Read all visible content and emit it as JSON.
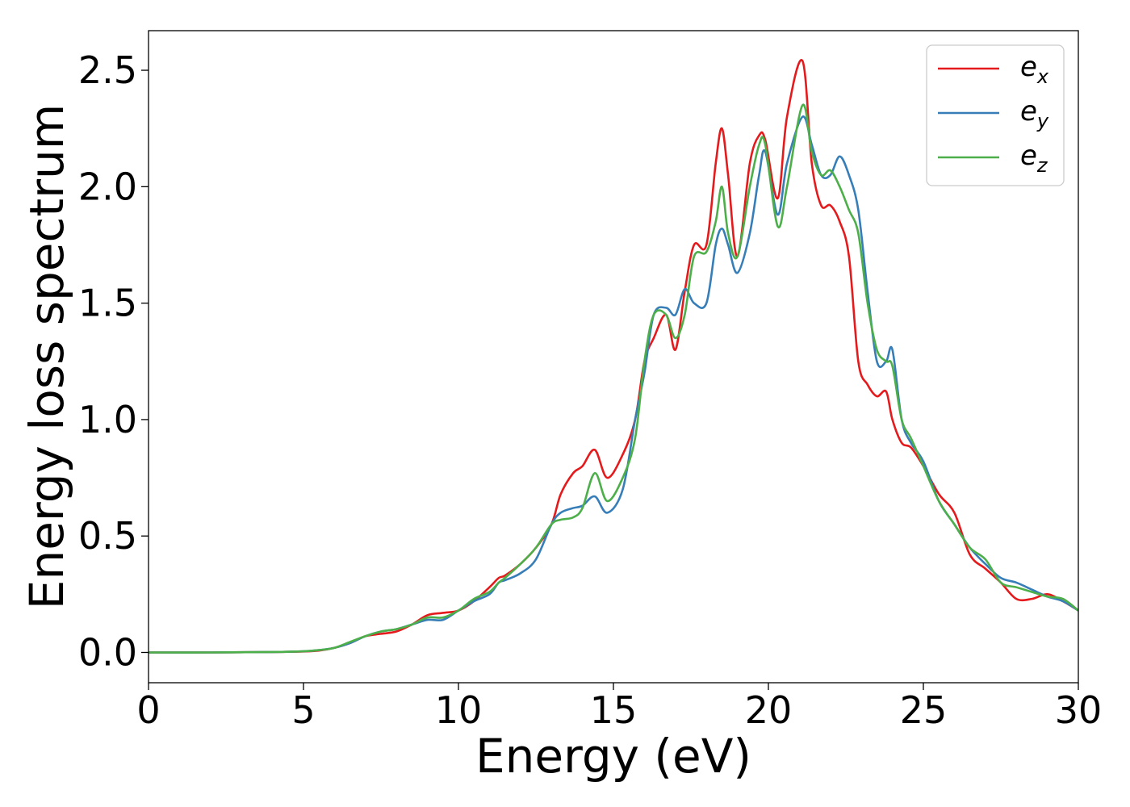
{
  "chart_data": {
    "type": "line",
    "xlabel": "Energy (eV)",
    "ylabel": "Energy loss spectrum",
    "xlim": [
      0,
      30
    ],
    "ylim": [
      -0.13,
      2.67
    ],
    "xticks": [
      "0",
      "5",
      "10",
      "15",
      "20",
      "25",
      "30"
    ],
    "yticks": [
      "0.0",
      "0.5",
      "1.0",
      "1.5",
      "2.0",
      "2.5"
    ],
    "grid": false,
    "legend_position": "top-right",
    "series": [
      {
        "name": "e_x",
        "legend_base": "e",
        "legend_sub": "x",
        "color": "#e41a1c",
        "x": [
          0,
          2,
          4,
          5,
          5.5,
          6,
          6.5,
          7,
          7.5,
          8,
          8.5,
          9,
          9.5,
          10,
          10.5,
          11,
          11.3,
          11.5,
          12,
          12.5,
          13,
          13.3,
          13.7,
          14,
          14.4,
          14.8,
          15.3,
          15.7,
          16,
          16.3,
          16.7,
          17,
          17.3,
          17.6,
          18,
          18.3,
          18.5,
          18.7,
          19,
          19.4,
          19.7,
          19.9,
          20.3,
          20.6,
          21.1,
          21.4,
          21.7,
          22,
          22.3,
          22.6,
          22.9,
          23.2,
          23.5,
          23.8,
          24,
          24.3,
          24.6,
          25,
          25.5,
          26,
          26.5,
          27,
          27.5,
          28,
          28.5,
          29,
          29.5,
          30
        ],
        "y": [
          0,
          0,
          0.002,
          0.004,
          0.008,
          0.02,
          0.04,
          0.07,
          0.08,
          0.09,
          0.12,
          0.16,
          0.17,
          0.18,
          0.22,
          0.28,
          0.32,
          0.33,
          0.38,
          0.45,
          0.55,
          0.68,
          0.77,
          0.8,
          0.87,
          0.75,
          0.85,
          1.0,
          1.25,
          1.35,
          1.45,
          1.3,
          1.55,
          1.75,
          1.75,
          2.1,
          2.25,
          2.05,
          1.7,
          2.1,
          2.22,
          2.2,
          1.95,
          2.3,
          2.54,
          2.1,
          1.92,
          1.92,
          1.85,
          1.7,
          1.25,
          1.15,
          1.1,
          1.12,
          1.0,
          0.9,
          0.88,
          0.8,
          0.68,
          0.6,
          0.42,
          0.36,
          0.3,
          0.23,
          0.23,
          0.25,
          0.22,
          0.18
        ]
      },
      {
        "name": "e_y",
        "legend_base": "e",
        "legend_sub": "y",
        "color": "#377eb8",
        "x": [
          0,
          2,
          4,
          5,
          5.5,
          6,
          6.5,
          7,
          7.5,
          8,
          8.5,
          9,
          9.5,
          10,
          10.5,
          11,
          11.3,
          11.5,
          12,
          12.5,
          13,
          13.3,
          13.7,
          14,
          14.4,
          14.8,
          15.3,
          15.7,
          16,
          16.3,
          16.7,
          17,
          17.3,
          17.6,
          18,
          18.3,
          18.5,
          18.7,
          19,
          19.4,
          19.7,
          19.9,
          20.3,
          20.6,
          21.1,
          21.4,
          21.7,
          22,
          22.3,
          22.6,
          22.9,
          23.2,
          23.5,
          23.8,
          24,
          24.3,
          24.6,
          25,
          25.5,
          26,
          26.5,
          27,
          27.5,
          28,
          28.5,
          29,
          29.5,
          30
        ],
        "y": [
          0,
          0,
          0.002,
          0.005,
          0.01,
          0.02,
          0.04,
          0.07,
          0.09,
          0.1,
          0.12,
          0.14,
          0.14,
          0.18,
          0.22,
          0.25,
          0.3,
          0.31,
          0.34,
          0.4,
          0.55,
          0.6,
          0.62,
          0.63,
          0.67,
          0.6,
          0.7,
          1.0,
          1.2,
          1.45,
          1.48,
          1.45,
          1.56,
          1.5,
          1.5,
          1.75,
          1.82,
          1.75,
          1.63,
          1.8,
          2.05,
          2.15,
          1.88,
          2.1,
          2.3,
          2.18,
          2.05,
          2.05,
          2.13,
          2.05,
          1.9,
          1.55,
          1.25,
          1.25,
          1.3,
          1.0,
          0.9,
          0.82,
          0.65,
          0.55,
          0.45,
          0.38,
          0.32,
          0.3,
          0.27,
          0.24,
          0.22,
          0.18
        ]
      },
      {
        "name": "e_z",
        "legend_base": "e",
        "legend_sub": "z",
        "color": "#4daf4a",
        "x": [
          0,
          2,
          4,
          5,
          5.5,
          6,
          6.5,
          7,
          7.5,
          8,
          8.5,
          9,
          9.5,
          10,
          10.5,
          11,
          11.3,
          11.5,
          12,
          12.5,
          13,
          13.3,
          13.7,
          14,
          14.4,
          14.8,
          15.3,
          15.7,
          16,
          16.3,
          16.7,
          17,
          17.3,
          17.6,
          18,
          18.3,
          18.5,
          18.7,
          19,
          19.4,
          19.7,
          19.9,
          20.3,
          20.6,
          21.1,
          21.4,
          21.7,
          22,
          22.3,
          22.6,
          22.9,
          23.2,
          23.5,
          23.8,
          24,
          24.3,
          24.6,
          25,
          25.5,
          26,
          26.5,
          27,
          27.5,
          28,
          28.5,
          29,
          29.5,
          30
        ],
        "y": [
          0,
          0,
          0.002,
          0.005,
          0.01,
          0.02,
          0.045,
          0.07,
          0.09,
          0.1,
          0.12,
          0.15,
          0.15,
          0.18,
          0.23,
          0.26,
          0.3,
          0.32,
          0.38,
          0.45,
          0.55,
          0.57,
          0.58,
          0.62,
          0.77,
          0.65,
          0.75,
          0.92,
          1.25,
          1.45,
          1.45,
          1.35,
          1.45,
          1.7,
          1.72,
          1.85,
          2.0,
          1.8,
          1.7,
          2.0,
          2.18,
          2.18,
          1.83,
          2.0,
          2.35,
          2.15,
          2.05,
          2.07,
          2.0,
          1.9,
          1.8,
          1.5,
          1.3,
          1.25,
          1.23,
          1.0,
          0.92,
          0.8,
          0.65,
          0.55,
          0.45,
          0.4,
          0.3,
          0.28,
          0.26,
          0.24,
          0.23,
          0.18
        ]
      }
    ]
  }
}
